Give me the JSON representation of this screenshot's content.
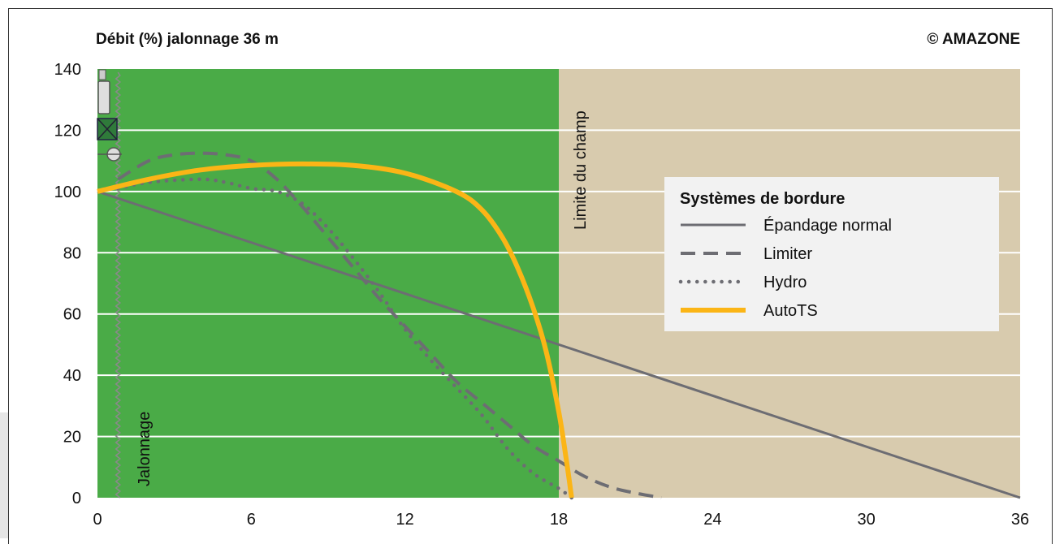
{
  "header": {
    "title": "Débit (%) jalonnage 36 m",
    "copyright": "© AMAZONE"
  },
  "colors": {
    "field": "#4aab47",
    "beyond_field": "#d8cbae",
    "grid": "#ffffff",
    "gray_line": "#6d6d73",
    "autots": "#fbb516",
    "legend_bg": "#f2f2f2"
  },
  "annotations": {
    "field_limit": "Limite du champ",
    "tramline": "Jalonnage"
  },
  "legend": {
    "title": "Systèmes de bordure",
    "items": [
      "Épandage normal",
      "Limiter",
      "Hydro",
      "AutoTS"
    ]
  },
  "chart_data": {
    "type": "line",
    "title": "Débit (%) jalonnage 36 m",
    "xlabel": "",
    "ylabel": "Débit (%)",
    "xlim": [
      0,
      36
    ],
    "ylim": [
      0,
      140
    ],
    "x_ticks": [
      "0",
      "6",
      "12",
      "18",
      "24",
      "30",
      "36"
    ],
    "y_ticks": [
      "0",
      "20",
      "40",
      "60",
      "80",
      "100",
      "120",
      "140"
    ],
    "grid": true,
    "legend_position": "right",
    "regions": [
      {
        "label": "field",
        "x": [
          0,
          18
        ]
      },
      {
        "label": "beyond field",
        "x": [
          18,
          36
        ]
      }
    ],
    "markers": [
      {
        "label": "Limite du champ",
        "x": 18
      },
      {
        "label": "Jalonnage",
        "x": 0.8
      }
    ],
    "series": [
      {
        "name": "Épandage normal",
        "style": "solid",
        "x": [
          0,
          36
        ],
        "y": [
          100,
          0
        ]
      },
      {
        "name": "Limiter",
        "style": "dashed",
        "x": [
          0.8,
          2,
          3,
          4,
          5,
          6,
          7,
          8,
          9,
          10,
          11,
          12,
          13,
          14,
          15,
          16,
          17,
          18,
          19,
          20,
          21,
          22
        ],
        "y": [
          104,
          110,
          112,
          112.5,
          112,
          110,
          104,
          95,
          85,
          75,
          65,
          56,
          47,
          38,
          31,
          24,
          17,
          12,
          7,
          3.5,
          1.5,
          0
        ]
      },
      {
        "name": "Hydro",
        "style": "dotted",
        "x": [
          0.8,
          2,
          4,
          5,
          6,
          7,
          8,
          9,
          10,
          11,
          12,
          13,
          14,
          15,
          16,
          17,
          18,
          18.5
        ],
        "y": [
          101,
          103,
          104,
          103,
          101,
          100,
          96,
          88,
          78,
          67,
          55,
          45,
          36,
          27,
          16,
          8,
          3,
          0
        ]
      },
      {
        "name": "AutoTS",
        "style": "solid",
        "x": [
          0,
          2,
          4,
          6,
          8,
          10,
          12,
          14,
          15,
          15.8,
          16.4,
          17,
          17.5,
          18,
          18.3,
          18.5
        ],
        "y": [
          100,
          104,
          107,
          108.5,
          109,
          108.5,
          106,
          100,
          94,
          85,
          75,
          62,
          48,
          28,
          12,
          0
        ]
      }
    ]
  }
}
